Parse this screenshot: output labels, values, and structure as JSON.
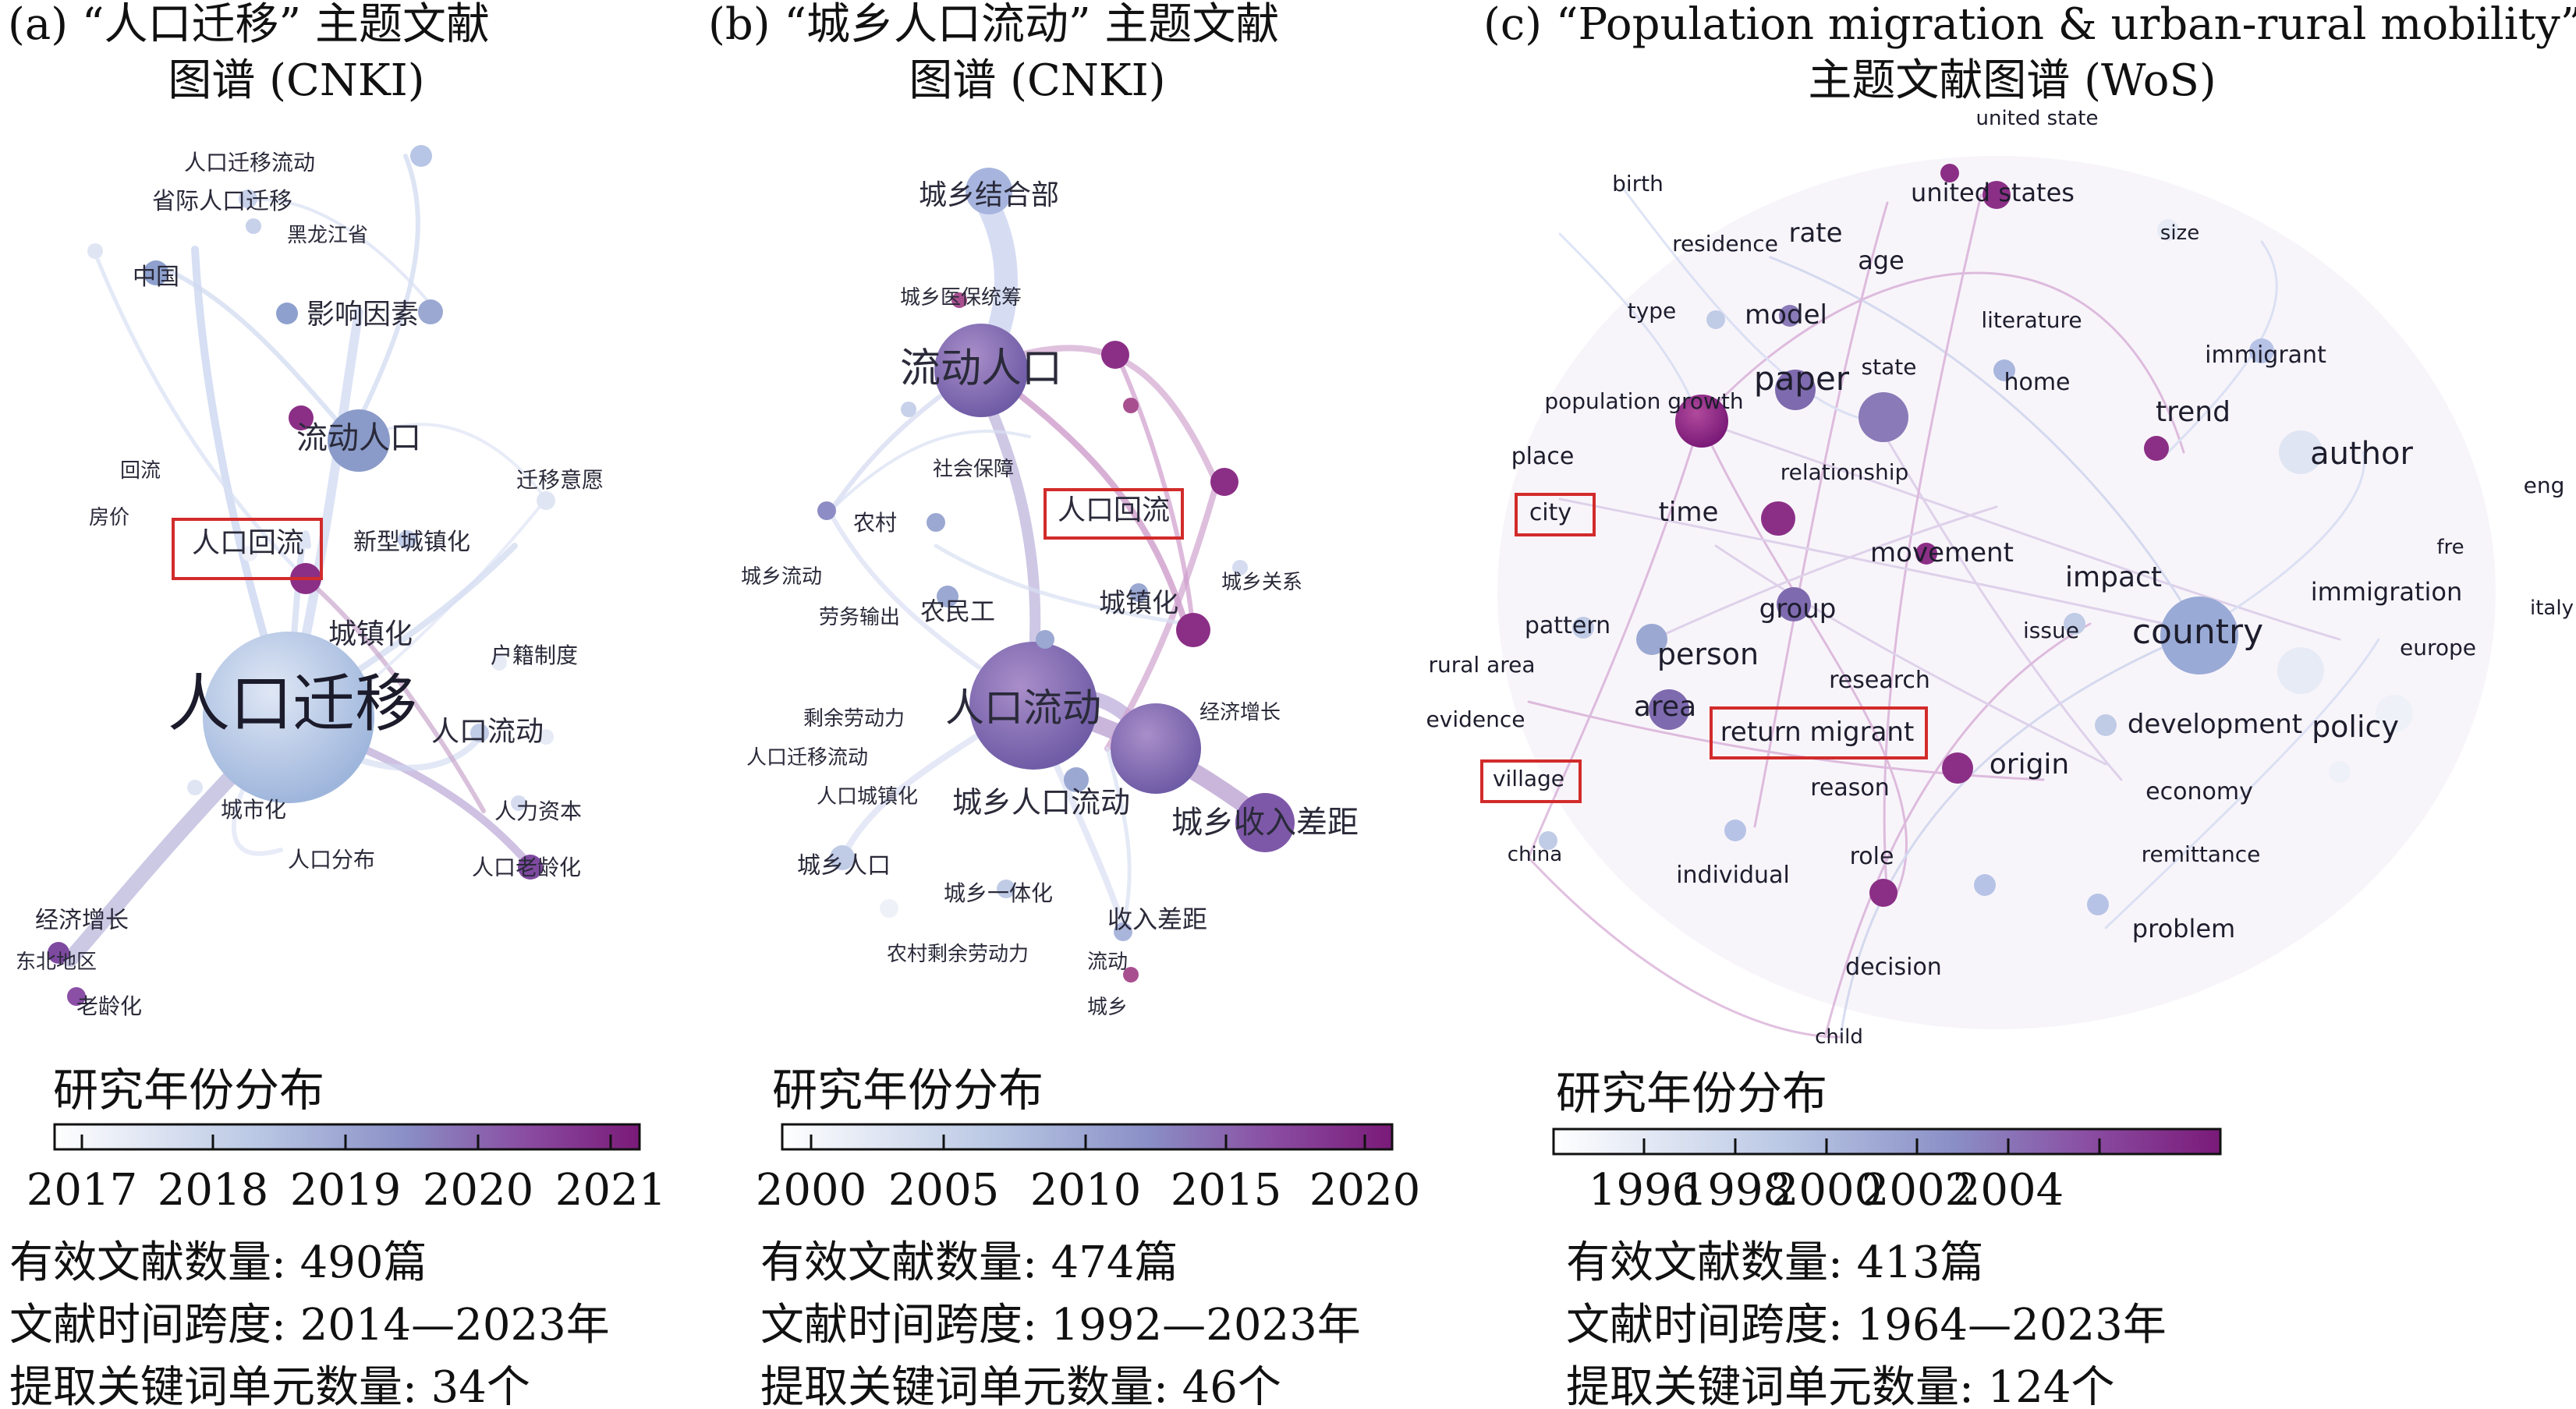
{
  "panels": [
    {
      "id": "a",
      "title_line1": "(a) “人口迁移” 主题文献",
      "title_line2": "图谱 (CNKI)",
      "keywords": [
        {
          "text": "人口迁移流动",
          "size": 28,
          "year": 0.35
        },
        {
          "text": "省际人口迁移",
          "size": 30,
          "year": 0.4
        },
        {
          "text": "黑龙江省",
          "size": 26,
          "year": 0.3
        },
        {
          "text": "中国",
          "size": 30,
          "year": 0.45
        },
        {
          "text": "影响因素",
          "size": 36,
          "year": 0.4
        },
        {
          "text": "流动人口",
          "size": 40,
          "year": 0.45
        },
        {
          "text": "回流",
          "size": 26,
          "year": 0.2
        },
        {
          "text": "迁移意愿",
          "size": 28,
          "year": 0.2
        },
        {
          "text": "房价",
          "size": 26,
          "year": 0.2
        },
        {
          "text": "人口回流",
          "size": 36,
          "year": 0.9
        },
        {
          "text": "新型城镇化",
          "size": 30,
          "year": 0.3
        },
        {
          "text": "城镇化",
          "size": 36,
          "year": 0.3
        },
        {
          "text": "户籍制度",
          "size": 28,
          "year": 0.3
        },
        {
          "text": "人口迁移",
          "size": 80,
          "year": 0.2
        },
        {
          "text": "人口流动",
          "size": 36,
          "year": 0.35
        },
        {
          "text": "城市化",
          "size": 28,
          "year": 0.3
        },
        {
          "text": "人力资本",
          "size": 28,
          "year": 0.4
        },
        {
          "text": "人口分布",
          "size": 28,
          "year": 0.35
        },
        {
          "text": "人口老龄化",
          "size": 28,
          "year": 0.7
        },
        {
          "text": "经济增长",
          "size": 30,
          "year": 0.5
        },
        {
          "text": "东北地区",
          "size": 26,
          "year": 0.6
        },
        {
          "text": "老龄化",
          "size": 28,
          "year": 0.6
        }
      ],
      "legend_title": "研究年份分布",
      "legend_ticks": [
        "2017",
        "2018",
        "2019",
        "2020",
        "2021"
      ],
      "stats": [
        "有效文献数量: 490篇",
        "文献时间跨度: 2014—2023年",
        "提取关键词单元数量: 34个"
      ]
    },
    {
      "id": "b",
      "title_line1": "(b) “城乡人口流动” 主题文献",
      "title_line2": "图谱 (CNKI)",
      "keywords": [
        {
          "text": "城乡结合部",
          "size": 36,
          "year": 0.35
        },
        {
          "text": "城乡医保统筹",
          "size": 26,
          "year": 0.5
        },
        {
          "text": "流动人口",
          "size": 52,
          "year": 0.55
        },
        {
          "text": "社会保障",
          "size": 26,
          "year": 0.35
        },
        {
          "text": "农村",
          "size": 28,
          "year": 0.5
        },
        {
          "text": "人口回流",
          "size": 36,
          "year": 0.9
        },
        {
          "text": "城乡流动",
          "size": 26,
          "year": 0.3
        },
        {
          "text": "劳务输出",
          "size": 26,
          "year": 0.3
        },
        {
          "text": "农民工",
          "size": 32,
          "year": 0.5
        },
        {
          "text": "城镇化",
          "size": 34,
          "year": 0.7
        },
        {
          "text": "城乡关系",
          "size": 26,
          "year": 0.6
        },
        {
          "text": "剩余劳动力",
          "size": 26,
          "year": 0.3
        },
        {
          "text": "人口流动",
          "size": 50,
          "year": 0.55
        },
        {
          "text": "经济增长",
          "size": 26,
          "year": 0.5
        },
        {
          "text": "人口迁移流动",
          "size": 26,
          "year": 0.35
        },
        {
          "text": "人口城镇化",
          "size": 26,
          "year": 0.4
        },
        {
          "text": "城乡人口流动",
          "size": 38,
          "year": 0.5
        },
        {
          "text": "城乡收入差距",
          "size": 40,
          "year": 0.65
        },
        {
          "text": "城乡人口",
          "size": 30,
          "year": 0.3
        },
        {
          "text": "城乡一体化",
          "size": 28,
          "year": 0.4
        },
        {
          "text": "收入差距",
          "size": 32,
          "year": 0.55
        },
        {
          "text": "农村剩余劳动力",
          "size": 26,
          "year": 0.3
        },
        {
          "text": "流动",
          "size": 26,
          "year": 0.45
        },
        {
          "text": "城乡",
          "size": 26,
          "year": 0.6
        }
      ],
      "legend_title": "研究年份分布",
      "legend_ticks": [
        "2000",
        "2005",
        "2010",
        "2015",
        "2020"
      ],
      "stats": [
        "有效文献数量: 474篇",
        "文献时间跨度: 1992—2023年",
        "提取关键词单元数量: 46个"
      ]
    },
    {
      "id": "c",
      "title_line1": "(c) “Population migration & urban-rural mobility”",
      "title_line2": "主题文献图谱 (WoS)",
      "keywords": [
        {
          "text": "united state",
          "size": 26,
          "year": 0.3
        },
        {
          "text": "birth",
          "size": 28,
          "year": 0.3
        },
        {
          "text": "united states",
          "size": 32,
          "year": 0.85
        },
        {
          "text": "residence",
          "size": 28,
          "year": 0.5
        },
        {
          "text": "rate",
          "size": 34,
          "year": 0.6
        },
        {
          "text": "age",
          "size": 32,
          "year": 0.55
        },
        {
          "text": "size",
          "size": 26,
          "year": 0.4
        },
        {
          "text": "type",
          "size": 28,
          "year": 0.5
        },
        {
          "text": "model",
          "size": 34,
          "year": 0.55
        },
        {
          "text": "literature",
          "size": 28,
          "year": 0.35
        },
        {
          "text": "immigrant",
          "size": 30,
          "year": 0.3
        },
        {
          "text": "state",
          "size": 28,
          "year": 0.35
        },
        {
          "text": "paper",
          "size": 42,
          "year": 0.6
        },
        {
          "text": "home",
          "size": 30,
          "year": 0.5
        },
        {
          "text": "population growth",
          "size": 28,
          "year": 0.9
        },
        {
          "text": "trend",
          "size": 36,
          "year": 0.65
        },
        {
          "text": "author",
          "size": 40,
          "year": 0.2
        },
        {
          "text": "place",
          "size": 30,
          "year": 0.6
        },
        {
          "text": "relationship",
          "size": 28,
          "year": 0.6
        },
        {
          "text": "eng",
          "size": 28,
          "year": 0.1
        },
        {
          "text": "city",
          "size": 30,
          "year": 0.7
        },
        {
          "text": "time",
          "size": 34,
          "year": 0.5
        },
        {
          "text": "fre",
          "size": 26,
          "year": 0.1
        },
        {
          "text": "movement",
          "size": 34,
          "year": 0.5
        },
        {
          "text": "impact",
          "size": 36,
          "year": 0.4
        },
        {
          "text": "immigration",
          "size": 32,
          "year": 0.3
        },
        {
          "text": "italy",
          "size": 26,
          "year": 0.1
        },
        {
          "text": "pattern",
          "size": 30,
          "year": 0.4
        },
        {
          "text": "group",
          "size": 34,
          "year": 0.55
        },
        {
          "text": "issue",
          "size": 28,
          "year": 0.4
        },
        {
          "text": "country",
          "size": 44,
          "year": 0.45
        },
        {
          "text": "rural area",
          "size": 28,
          "year": 0.6
        },
        {
          "text": "person",
          "size": 38,
          "year": 0.45
        },
        {
          "text": "europe",
          "size": 28,
          "year": 0.3
        },
        {
          "text": "research",
          "size": 30,
          "year": 0.7
        },
        {
          "text": "evidence",
          "size": 28,
          "year": 0.5
        },
        {
          "text": "area",
          "size": 36,
          "year": 0.5
        },
        {
          "text": "return migrant",
          "size": 34,
          "year": 0.5
        },
        {
          "text": "development",
          "size": 34,
          "year": 0.35
        },
        {
          "text": "policy",
          "size": 38,
          "year": 0.3
        },
        {
          "text": "origin",
          "size": 36,
          "year": 0.8
        },
        {
          "text": "village",
          "size": 28,
          "year": 0.5
        },
        {
          "text": "reason",
          "size": 30,
          "year": 0.45
        },
        {
          "text": "economy",
          "size": 30,
          "year": 0.3
        },
        {
          "text": "china",
          "size": 26,
          "year": 0.5
        },
        {
          "text": "remittance",
          "size": 28,
          "year": 0.35
        },
        {
          "text": "role",
          "size": 30,
          "year": 0.6
        },
        {
          "text": "individual",
          "size": 30,
          "year": 0.55
        },
        {
          "text": "problem",
          "size": 32,
          "year": 0.35
        },
        {
          "text": "decision",
          "size": 30,
          "year": 0.45
        },
        {
          "text": "child",
          "size": 26,
          "year": 0.5
        }
      ],
      "legend_title": "研究年份分布",
      "legend_ticks": [
        "1996",
        "1998",
        "2000",
        "2002",
        "2004"
      ],
      "stats": [
        "有效文献数量: 413篇",
        "文献时间跨度: 1964—2023年",
        "提取关键词单元数量: 124个"
      ]
    }
  ],
  "colors": {
    "scale_low": "#ffffff",
    "scale_mid": "#8ea2cf",
    "scale_high": "#7a1a78",
    "highlight_box": "#d22b2b",
    "text": "#111111"
  }
}
